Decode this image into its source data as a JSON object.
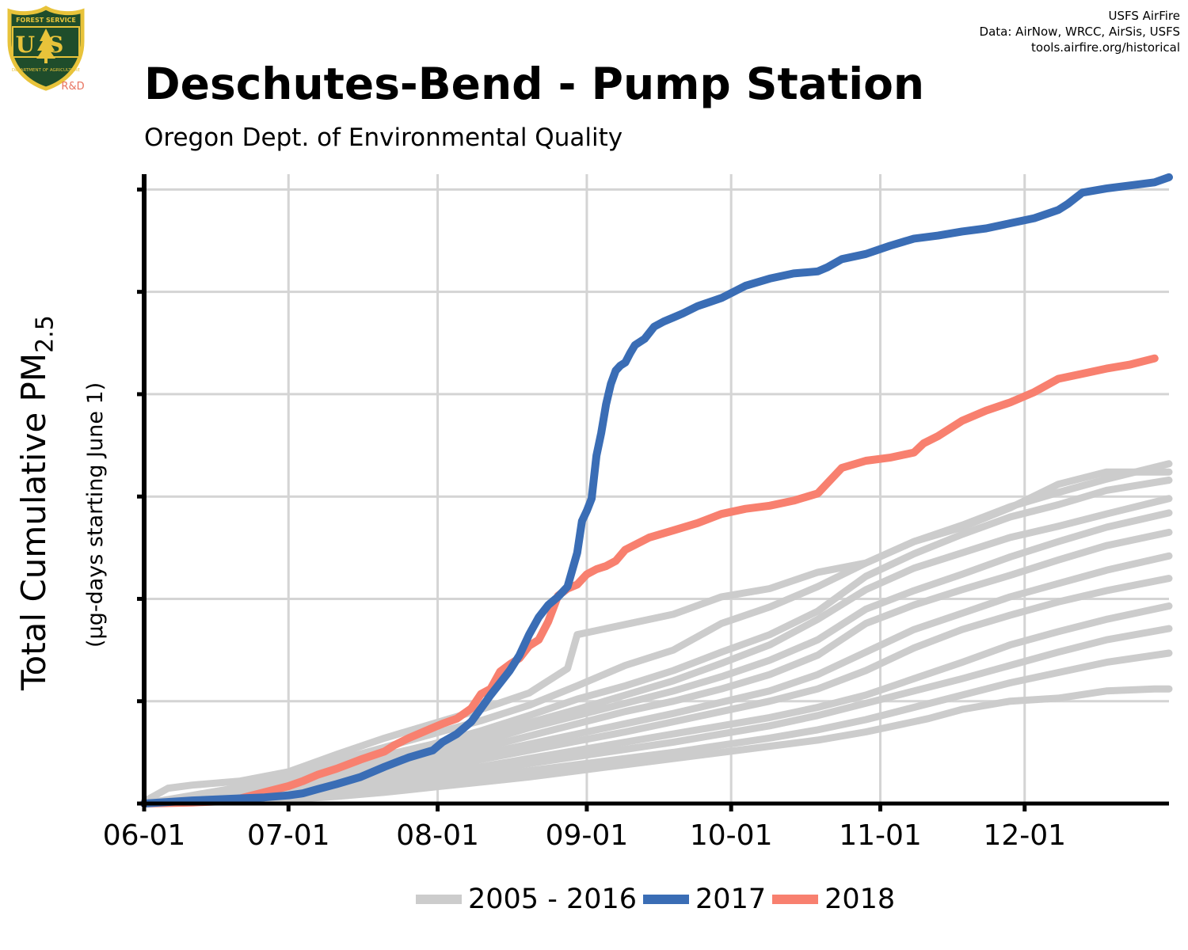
{
  "logo": {
    "top_text": "FOREST SERVICE",
    "center_text": "US",
    "bottom_text": "DEPARTMENT OF AGRICULTURE",
    "tag": "R&D",
    "colors": {
      "shield_fill": "#1f4d2b",
      "rim": "#e8c33a",
      "tag": "#e8735f"
    }
  },
  "credits": [
    "USFS AirFire",
    "Data: AirNow, WRCC, AirSis, USFS",
    "tools.airfire.org/historical"
  ],
  "title": "Deschutes-Bend - Pump Station",
  "subtitle": "Oregon Dept. of Environmental Quality",
  "ylabel": {
    "main": "Total Cumulative PM",
    "sub_script": "2.5",
    "secondary": "(µg-days starting June 1)"
  },
  "legend": [
    {
      "label": "2005 - 2016",
      "color": "#cccccc"
    },
    {
      "label": "2017",
      "color": "#3a6db5"
    },
    {
      "label": "2018",
      "color": "#f8806f"
    }
  ],
  "chart_data": {
    "type": "line",
    "x_ticks": [
      "06-01",
      "07-01",
      "08-01",
      "09-01",
      "10-01",
      "11-01",
      "12-01"
    ],
    "x_tick_days": [
      0,
      30,
      61,
      92,
      122,
      153,
      183
    ],
    "xlim": [
      0,
      213
    ],
    "ylim": [
      0,
      6.15
    ],
    "y_gridlines": [
      0,
      1,
      2,
      3,
      4,
      5,
      6
    ],
    "y_tick_labels": [],
    "grid": true,
    "legend_position": "bottom",
    "series": [
      {
        "name": "2017",
        "color": "#3a6db5",
        "x": [
          0,
          10,
          20,
          25,
          30,
          33,
          36,
          40,
          45,
          50,
          55,
          60,
          62,
          65,
          68,
          70,
          72,
          74,
          76,
          78,
          80,
          82,
          84,
          86,
          88,
          90,
          91,
          92,
          93,
          94,
          95,
          96,
          97,
          98,
          99,
          100,
          101,
          102,
          104,
          106,
          108,
          110,
          112,
          115,
          120,
          125,
          130,
          135,
          140,
          142,
          145,
          150,
          155,
          160,
          165,
          170,
          175,
          180,
          185,
          190,
          192,
          195,
          200,
          205,
          210,
          213
        ],
        "y": [
          0,
          0.03,
          0.05,
          0.06,
          0.08,
          0.1,
          0.14,
          0.19,
          0.26,
          0.36,
          0.45,
          0.52,
          0.6,
          0.68,
          0.8,
          0.93,
          1.06,
          1.18,
          1.3,
          1.45,
          1.65,
          1.82,
          1.94,
          2.02,
          2.12,
          2.45,
          2.76,
          2.86,
          2.98,
          3.4,
          3.62,
          3.9,
          4.1,
          4.23,
          4.28,
          4.31,
          4.4,
          4.48,
          4.54,
          4.66,
          4.71,
          4.75,
          4.79,
          4.86,
          4.94,
          5.06,
          5.13,
          5.18,
          5.2,
          5.24,
          5.32,
          5.37,
          5.45,
          5.52,
          5.55,
          5.59,
          5.62,
          5.67,
          5.72,
          5.8,
          5.86,
          5.97,
          6.01,
          6.04,
          6.07,
          6.12
        ]
      },
      {
        "name": "2018",
        "color": "#f8806f",
        "x": [
          0,
          10,
          15,
          20,
          30,
          33,
          36,
          40,
          45,
          50,
          52,
          55,
          58,
          60,
          62,
          65,
          68,
          70,
          72,
          74,
          76,
          78,
          80,
          82,
          84,
          86,
          88,
          90,
          92,
          94,
          96,
          98,
          100,
          105,
          110,
          115,
          120,
          125,
          130,
          135,
          140,
          145,
          150,
          155,
          160,
          162,
          165,
          170,
          175,
          180,
          185,
          190,
          195,
          200,
          205,
          210
        ],
        "y": [
          0,
          0.01,
          0.02,
          0.05,
          0.17,
          0.22,
          0.28,
          0.34,
          0.43,
          0.51,
          0.57,
          0.64,
          0.7,
          0.74,
          0.78,
          0.83,
          0.93,
          1.07,
          1.12,
          1.29,
          1.36,
          1.42,
          1.54,
          1.6,
          1.78,
          2.03,
          2.1,
          2.14,
          2.24,
          2.29,
          2.32,
          2.37,
          2.48,
          2.6,
          2.67,
          2.74,
          2.83,
          2.88,
          2.91,
          2.96,
          3.03,
          3.28,
          3.35,
          3.38,
          3.43,
          3.52,
          3.59,
          3.74,
          3.84,
          3.92,
          4.02,
          4.15,
          4.2,
          4.25,
          4.29,
          4.35
        ]
      },
      {
        "color": "#cccccc",
        "x": [
          0,
          5,
          10,
          20,
          30,
          40,
          50,
          60,
          70,
          80,
          88,
          90,
          100,
          110,
          120,
          130,
          140,
          150,
          160,
          170,
          180,
          190,
          200,
          213
        ],
        "y": [
          0.02,
          0.15,
          0.18,
          0.22,
          0.31,
          0.48,
          0.64,
          0.78,
          0.92,
          1.08,
          1.32,
          1.65,
          1.75,
          1.85,
          2.02,
          2.1,
          2.26,
          2.35,
          2.56,
          2.7,
          2.89,
          3.12,
          3.24,
          3.24
        ]
      },
      {
        "color": "#cccccc",
        "x": [
          0,
          10,
          20,
          30,
          40,
          50,
          60,
          70,
          80,
          90,
          100,
          110,
          120,
          130,
          140,
          150,
          160,
          170,
          180,
          190,
          200,
          213
        ],
        "y": [
          0,
          0.08,
          0.16,
          0.3,
          0.42,
          0.55,
          0.68,
          0.81,
          0.96,
          1.15,
          1.35,
          1.5,
          1.76,
          1.92,
          2.12,
          2.35,
          2.56,
          2.72,
          2.9,
          3.04,
          3.17,
          3.32
        ]
      },
      {
        "color": "#cccccc",
        "x": [
          0,
          10,
          20,
          30,
          40,
          50,
          60,
          70,
          80,
          90,
          100,
          110,
          120,
          130,
          140,
          150,
          160,
          170,
          180,
          190,
          200,
          213
        ],
        "y": [
          0,
          0.06,
          0.13,
          0.25,
          0.36,
          0.47,
          0.58,
          0.71,
          0.86,
          1.02,
          1.15,
          1.3,
          1.48,
          1.65,
          1.88,
          2.22,
          2.44,
          2.63,
          2.8,
          2.92,
          3.06,
          3.16
        ]
      },
      {
        "color": "#cccccc",
        "x": [
          0,
          10,
          20,
          30,
          40,
          50,
          60,
          70,
          80,
          90,
          100,
          110,
          120,
          130,
          140,
          150,
          160,
          170,
          180,
          190,
          200,
          213
        ],
        "y": [
          0,
          0.05,
          0.1,
          0.2,
          0.3,
          0.41,
          0.53,
          0.66,
          0.79,
          0.92,
          1.06,
          1.2,
          1.37,
          1.55,
          1.8,
          2.09,
          2.3,
          2.45,
          2.6,
          2.71,
          2.83,
          2.98
        ]
      },
      {
        "color": "#cccccc",
        "x": [
          0,
          10,
          20,
          30,
          40,
          50,
          60,
          70,
          80,
          90,
          100,
          110,
          120,
          130,
          140,
          150,
          160,
          170,
          180,
          190,
          200,
          213
        ],
        "y": [
          0,
          0.04,
          0.09,
          0.17,
          0.27,
          0.37,
          0.48,
          0.6,
          0.74,
          0.86,
          0.98,
          1.1,
          1.24,
          1.4,
          1.6,
          1.9,
          2.08,
          2.24,
          2.41,
          2.56,
          2.7,
          2.84
        ]
      },
      {
        "color": "#cccccc",
        "x": [
          0,
          10,
          20,
          30,
          40,
          50,
          60,
          70,
          80,
          90,
          100,
          110,
          120,
          130,
          140,
          150,
          160,
          170,
          180,
          190,
          200,
          213
        ],
        "y": [
          0,
          0.04,
          0.08,
          0.15,
          0.23,
          0.33,
          0.43,
          0.54,
          0.66,
          0.78,
          0.9,
          1.0,
          1.12,
          1.26,
          1.45,
          1.76,
          1.94,
          2.09,
          2.23,
          2.38,
          2.52,
          2.65
        ]
      },
      {
        "color": "#cccccc",
        "x": [
          0,
          10,
          20,
          30,
          40,
          50,
          60,
          70,
          80,
          90,
          100,
          110,
          120,
          130,
          140,
          150,
          160,
          170,
          180,
          190,
          200,
          213
        ],
        "y": [
          0,
          0.03,
          0.07,
          0.13,
          0.2,
          0.29,
          0.38,
          0.48,
          0.58,
          0.68,
          0.78,
          0.88,
          0.99,
          1.1,
          1.26,
          1.48,
          1.7,
          1.86,
          2.02,
          2.15,
          2.28,
          2.42
        ]
      },
      {
        "color": "#cccccc",
        "x": [
          0,
          10,
          20,
          30,
          40,
          50,
          60,
          70,
          80,
          90,
          100,
          110,
          120,
          130,
          140,
          150,
          160,
          170,
          180,
          190,
          200,
          213
        ],
        "y": [
          0,
          0.03,
          0.06,
          0.12,
          0.18,
          0.26,
          0.34,
          0.43,
          0.52,
          0.61,
          0.7,
          0.8,
          0.9,
          1.0,
          1.12,
          1.3,
          1.52,
          1.7,
          1.84,
          1.97,
          2.08,
          2.2
        ]
      },
      {
        "color": "#cccccc",
        "x": [
          0,
          10,
          20,
          30,
          40,
          50,
          60,
          70,
          80,
          90,
          100,
          110,
          120,
          130,
          140,
          150,
          160,
          170,
          180,
          190,
          200,
          213
        ],
        "y": [
          0,
          0.02,
          0.05,
          0.1,
          0.16,
          0.22,
          0.29,
          0.36,
          0.44,
          0.52,
          0.6,
          0.68,
          0.76,
          0.84,
          0.94,
          1.06,
          1.22,
          1.38,
          1.55,
          1.68,
          1.8,
          1.93
        ]
      },
      {
        "color": "#cccccc",
        "x": [
          0,
          10,
          20,
          30,
          40,
          50,
          60,
          70,
          80,
          90,
          100,
          110,
          120,
          130,
          140,
          150,
          160,
          170,
          180,
          190,
          200,
          213
        ],
        "y": [
          0,
          0.02,
          0.04,
          0.08,
          0.13,
          0.19,
          0.25,
          0.32,
          0.39,
          0.46,
          0.53,
          0.6,
          0.68,
          0.76,
          0.86,
          0.98,
          1.1,
          1.22,
          1.35,
          1.48,
          1.6,
          1.71
        ]
      },
      {
        "color": "#cccccc",
        "x": [
          0,
          10,
          20,
          30,
          40,
          50,
          60,
          70,
          80,
          90,
          100,
          110,
          120,
          130,
          140,
          150,
          160,
          170,
          180,
          190,
          200,
          213
        ],
        "y": [
          0,
          0.02,
          0.03,
          0.06,
          0.1,
          0.15,
          0.2,
          0.26,
          0.32,
          0.38,
          0.44,
          0.5,
          0.57,
          0.64,
          0.72,
          0.82,
          0.94,
          1.06,
          1.18,
          1.28,
          1.38,
          1.47
        ]
      },
      {
        "color": "#cccccc",
        "x": [
          0,
          10,
          20,
          30,
          40,
          50,
          60,
          70,
          80,
          90,
          100,
          110,
          120,
          130,
          140,
          150,
          160,
          163,
          170,
          180,
          190,
          200,
          210,
          213
        ],
        "y": [
          0,
          0.01,
          0.02,
          0.04,
          0.07,
          0.11,
          0.16,
          0.21,
          0.26,
          0.32,
          0.38,
          0.44,
          0.5,
          0.56,
          0.62,
          0.7,
          0.8,
          0.83,
          0.92,
          1.0,
          1.03,
          1.1,
          1.12,
          1.12
        ]
      }
    ]
  }
}
